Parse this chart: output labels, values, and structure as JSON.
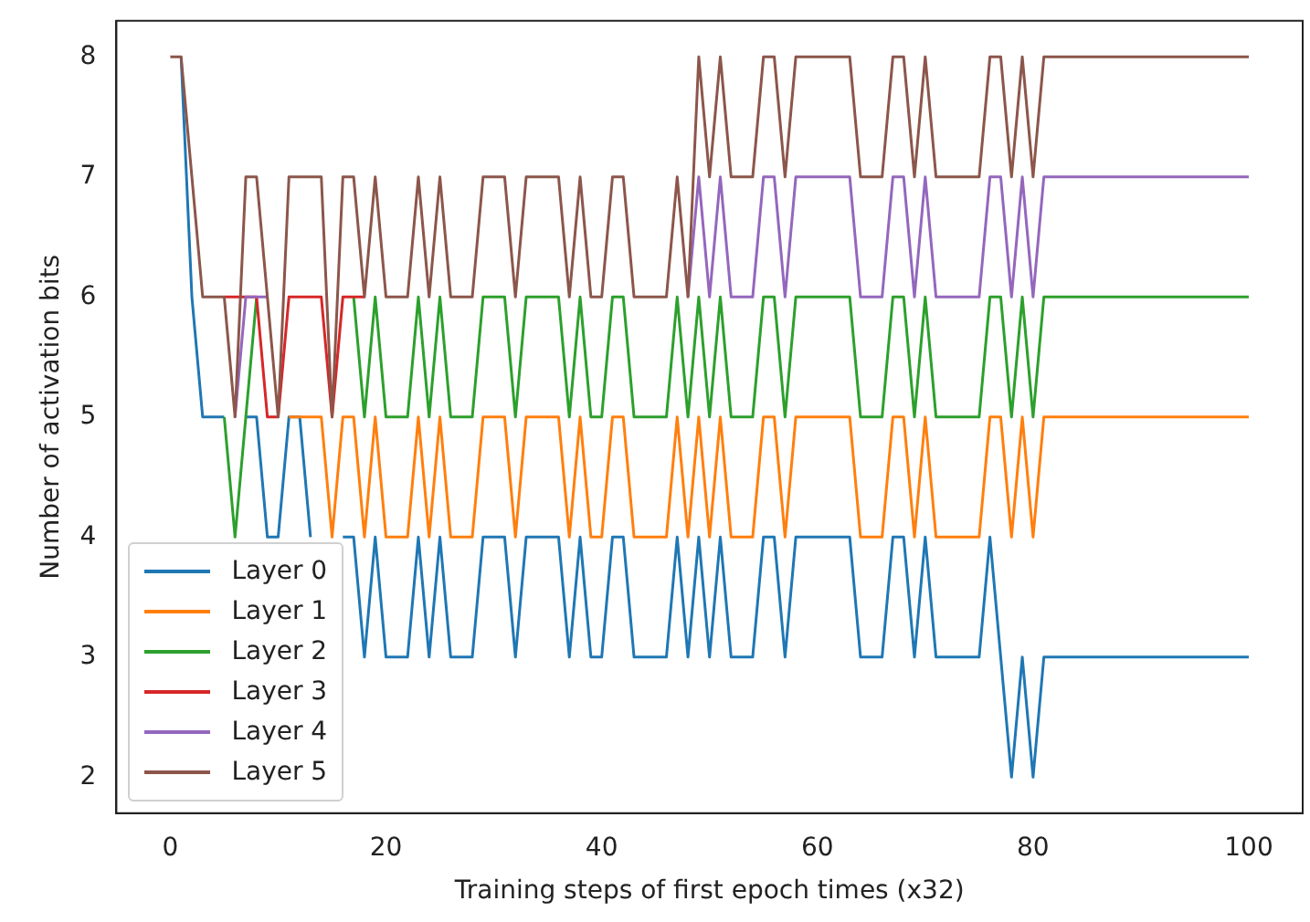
{
  "chart_data": {
    "type": "line",
    "xlabel": "Training steps of first epoch times (x32)",
    "ylabel": "Number of activation bits",
    "x": [
      0,
      1,
      2,
      3,
      4,
      5,
      6,
      7,
      8,
      9,
      10,
      11,
      12,
      13,
      14,
      15,
      16,
      17,
      18,
      19,
      20,
      21,
      22,
      23,
      24,
      25,
      26,
      27,
      28,
      29,
      30,
      31,
      32,
      33,
      34,
      35,
      36,
      37,
      38,
      39,
      40,
      41,
      42,
      43,
      44,
      45,
      46,
      47,
      48,
      49,
      50,
      51,
      52,
      53,
      54,
      55,
      56,
      57,
      58,
      59,
      60,
      61,
      62,
      63,
      64,
      65,
      66,
      67,
      68,
      69,
      70,
      71,
      72,
      73,
      74,
      75,
      76,
      77,
      78,
      79,
      80,
      81,
      82,
      83,
      84,
      85,
      86,
      87,
      88,
      89,
      90,
      91,
      92,
      93,
      94,
      95,
      96,
      97,
      98,
      99,
      100
    ],
    "series": [
      {
        "name": "Layer 0",
        "color": "#1f77b4",
        "values": [
          null,
          8,
          6,
          5,
          5,
          5,
          null,
          5,
          5,
          4,
          4,
          5,
          5,
          4,
          null,
          null,
          4,
          4,
          3,
          4,
          3,
          3,
          3,
          4,
          3,
          4,
          3,
          3,
          3,
          4,
          4,
          4,
          3,
          4,
          4,
          4,
          4,
          3,
          4,
          3,
          3,
          4,
          4,
          3,
          3,
          3,
          3,
          4,
          3,
          4,
          3,
          4,
          3,
          3,
          3,
          4,
          4,
          3,
          4,
          4,
          4,
          4,
          4,
          4,
          3,
          3,
          3,
          4,
          4,
          3,
          4,
          3,
          3,
          3,
          3,
          3,
          4,
          3,
          2,
          3,
          2,
          3,
          3,
          3,
          3,
          3,
          3,
          3,
          3,
          3,
          3,
          3,
          3,
          3,
          3,
          3,
          3,
          3,
          3,
          3,
          3
        ]
      },
      {
        "name": "Layer 1",
        "color": "#ff7f0e",
        "values": [
          null,
          null,
          null,
          null,
          null,
          null,
          null,
          null,
          null,
          null,
          null,
          5,
          5,
          5,
          5,
          4,
          5,
          5,
          4,
          5,
          4,
          4,
          4,
          5,
          4,
          5,
          4,
          4,
          4,
          5,
          5,
          5,
          4,
          5,
          5,
          5,
          5,
          4,
          5,
          4,
          4,
          5,
          5,
          4,
          4,
          4,
          4,
          5,
          4,
          5,
          4,
          5,
          4,
          4,
          4,
          5,
          5,
          4,
          5,
          5,
          5,
          5,
          5,
          5,
          4,
          4,
          4,
          5,
          5,
          4,
          5,
          4,
          4,
          4,
          4,
          4,
          5,
          5,
          4,
          5,
          4,
          5,
          5,
          5,
          5,
          5,
          5,
          5,
          5,
          5,
          5,
          5,
          5,
          5,
          5,
          5,
          5,
          5,
          5,
          5,
          5
        ]
      },
      {
        "name": "Layer 2",
        "color": "#2ca02c",
        "values": [
          null,
          null,
          null,
          null,
          null,
          5,
          4,
          5,
          6,
          null,
          null,
          null,
          null,
          null,
          null,
          null,
          null,
          6,
          5,
          6,
          5,
          5,
          5,
          6,
          5,
          6,
          5,
          5,
          5,
          6,
          6,
          6,
          5,
          6,
          6,
          6,
          6,
          5,
          6,
          5,
          5,
          6,
          6,
          5,
          5,
          5,
          5,
          6,
          5,
          6,
          5,
          6,
          5,
          5,
          5,
          6,
          6,
          5,
          6,
          6,
          6,
          6,
          6,
          6,
          5,
          5,
          5,
          6,
          6,
          5,
          6,
          5,
          5,
          5,
          5,
          5,
          6,
          6,
          5,
          6,
          5,
          6,
          6,
          6,
          6,
          6,
          6,
          6,
          6,
          6,
          6,
          6,
          6,
          6,
          6,
          6,
          6,
          6,
          6,
          6,
          6
        ]
      },
      {
        "name": "Layer 3",
        "color": "#d62728",
        "values": [
          null,
          null,
          null,
          null,
          null,
          6,
          6,
          6,
          6,
          5,
          5,
          6,
          6,
          6,
          6,
          5,
          6,
          6,
          6,
          null,
          null,
          null,
          null,
          null,
          null,
          null,
          null,
          null,
          null,
          null,
          null,
          null,
          null,
          null,
          null,
          null,
          null,
          null,
          null,
          null,
          null,
          null,
          null,
          null,
          null,
          null,
          null,
          null,
          null,
          null,
          null,
          null,
          null,
          null,
          null,
          null,
          null,
          null,
          null,
          null,
          null,
          null,
          null,
          null,
          null,
          null,
          null,
          null,
          null,
          null,
          null,
          null,
          null,
          null,
          null,
          null,
          null,
          null,
          null,
          null,
          null,
          null,
          null,
          null,
          null,
          null,
          null,
          null,
          null,
          null,
          null,
          null,
          null,
          null,
          null,
          null,
          null,
          null,
          null,
          null,
          null
        ]
      },
      {
        "name": "Layer 4",
        "color": "#9467bd",
        "values": [
          null,
          null,
          null,
          null,
          null,
          null,
          5,
          6,
          6,
          6,
          null,
          null,
          null,
          null,
          null,
          null,
          null,
          null,
          null,
          null,
          null,
          null,
          null,
          null,
          null,
          null,
          null,
          null,
          null,
          null,
          null,
          null,
          null,
          null,
          null,
          null,
          null,
          null,
          null,
          null,
          null,
          null,
          null,
          null,
          null,
          null,
          null,
          null,
          6,
          7,
          6,
          7,
          6,
          6,
          6,
          7,
          7,
          6,
          7,
          7,
          7,
          7,
          7,
          7,
          6,
          6,
          6,
          7,
          7,
          6,
          7,
          6,
          6,
          6,
          6,
          6,
          7,
          7,
          6,
          7,
          6,
          7,
          7,
          7,
          7,
          7,
          7,
          7,
          7,
          7,
          7,
          7,
          7,
          7,
          7,
          7,
          7,
          7,
          7,
          7,
          7
        ]
      },
      {
        "name": "Layer 5",
        "color": "#8c564b",
        "values": [
          8,
          8,
          7,
          6,
          6,
          6,
          5,
          7,
          7,
          6,
          5,
          7,
          7,
          7,
          7,
          5,
          7,
          7,
          6,
          7,
          6,
          6,
          6,
          7,
          6,
          7,
          6,
          6,
          6,
          7,
          7,
          7,
          6,
          7,
          7,
          7,
          7,
          6,
          7,
          6,
          6,
          7,
          7,
          6,
          6,
          6,
          6,
          7,
          6,
          8,
          7,
          8,
          7,
          7,
          7,
          8,
          8,
          7,
          8,
          8,
          8,
          8,
          8,
          8,
          7,
          7,
          7,
          8,
          8,
          7,
          8,
          7,
          7,
          7,
          7,
          7,
          8,
          8,
          7,
          8,
          7,
          8,
          8,
          8,
          8,
          8,
          8,
          8,
          8,
          8,
          8,
          8,
          8,
          8,
          8,
          8,
          8,
          8,
          8,
          8,
          8
        ]
      }
    ],
    "xlim": [
      -5,
      105
    ],
    "xticks": [
      0,
      20,
      40,
      60,
      80,
      100
    ],
    "ylim": [
      1.7,
      8.3
    ],
    "yticks": [
      2,
      3,
      4,
      5,
      6,
      7,
      8
    ],
    "grid": false,
    "legend": "bottom left",
    "marker": "none",
    "line_style": "solid"
  }
}
